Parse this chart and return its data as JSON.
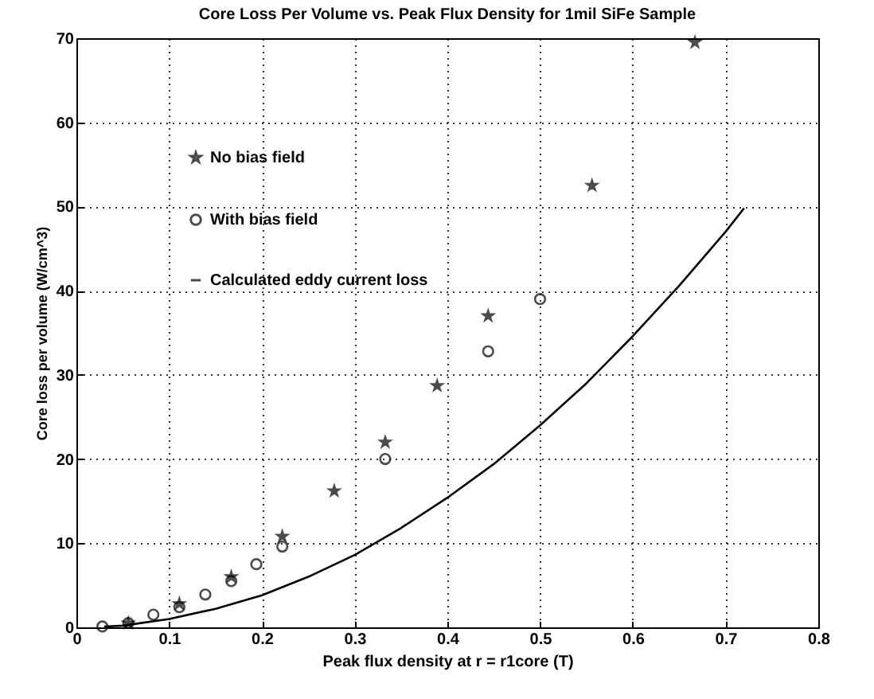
{
  "chart_data": {
    "type": "scatter",
    "title": "Core Loss Per Volume vs. Peak Flux Density for 1mil SiFe Sample",
    "xlabel": "Peak flux density at r = r1core (T)",
    "ylabel": "Core loss per volume (W/cm^3)",
    "xlim": [
      0,
      0.8
    ],
    "ylim": [
      0,
      70
    ],
    "xticks": [
      0,
      0.1,
      0.2,
      0.3,
      0.4,
      0.5,
      0.6,
      0.7,
      0.8
    ],
    "yticks": [
      0,
      10,
      20,
      30,
      40,
      50,
      60,
      70
    ],
    "grid": true,
    "legend": "top left",
    "series": [
      {
        "name": "No bias field",
        "type": "scatter",
        "marker": "star",
        "color": "#000000",
        "x": [
          0.056,
          0.111,
          0.167,
          0.222,
          0.278,
          0.333,
          0.389,
          0.444,
          0.556,
          0.667
        ],
        "values": [
          0.5,
          2.8,
          6,
          10.8,
          16.2,
          22,
          28.7,
          37,
          52.5,
          69.5
        ]
      },
      {
        "name": "With bias field",
        "type": "scatter",
        "marker": "circle",
        "color": "#000000",
        "x": [
          0.028,
          0.056,
          0.083,
          0.111,
          0.139,
          0.167,
          0.194,
          0.222,
          0.333,
          0.444,
          0.5
        ],
        "values": [
          0.1,
          0.5,
          1.5,
          2.4,
          3.9,
          5.5,
          7.5,
          9.6,
          20,
          32.8,
          39
        ]
      },
      {
        "name": "Calculated eddy current loss",
        "type": "line",
        "line_style": "solid",
        "color": "#000000",
        "x": [
          0.03,
          0.05,
          0.1,
          0.15,
          0.2,
          0.25,
          0.3,
          0.35,
          0.4,
          0.45,
          0.5,
          0.55,
          0.6,
          0.65,
          0.7,
          0.72
        ],
        "values": [
          0.1,
          0.2,
          1,
          2.2,
          3.8,
          6,
          8.6,
          11.8,
          15.4,
          19.4,
          24,
          29,
          34.6,
          40.6,
          47,
          49.8
        ]
      }
    ]
  }
}
